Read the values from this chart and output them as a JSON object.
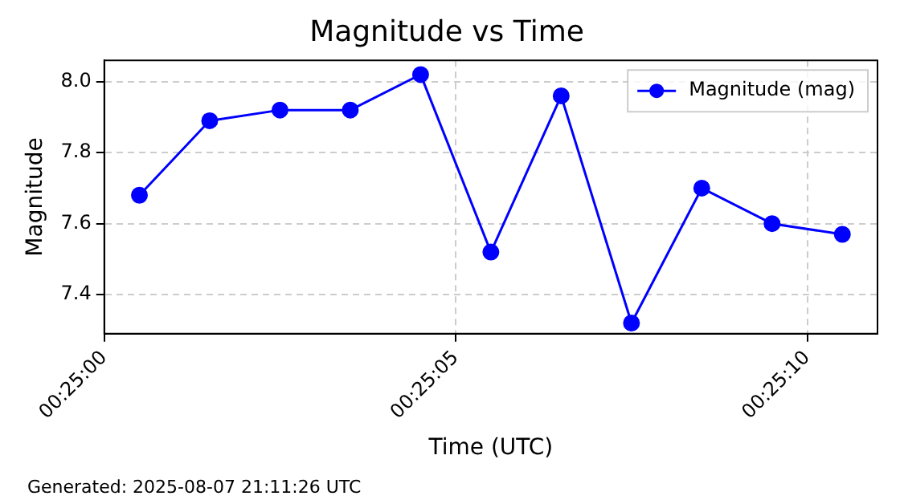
{
  "chart_data": {
    "type": "line",
    "title": "Magnitude vs Time",
    "xlabel": "Time (UTC)",
    "ylabel": "Magnitude",
    "x": [
      0.4168056,
      0.4170833,
      0.4173611,
      0.4176389,
      0.4179167,
      0.4181944,
      0.4184722,
      0.41875,
      0.4190278,
      0.4193056,
      0.4195833
    ],
    "series": [
      {
        "name": "Magnitude (mag)",
        "color": "#0000ff",
        "values": [
          7.68,
          7.89,
          7.92,
          7.92,
          8.02,
          7.52,
          7.96,
          7.32,
          7.7,
          7.6,
          7.57
        ]
      }
    ],
    "xlim": [
      0.4166667,
      0.4197222
    ],
    "xticks": [
      {
        "value": 0.4166667,
        "label": "00:25:00"
      },
      {
        "value": 0.4180556,
        "label": "00:25:05"
      },
      {
        "value": 0.4194444,
        "label": "00:25:10"
      }
    ],
    "ylim": [
      7.29,
      8.06
    ],
    "yticks": [
      7.4,
      7.6,
      7.8,
      {
        "value": 8,
        "label": "8.0"
      }
    ],
    "grid": true,
    "legend": "top right",
    "marker": "circle",
    "line_style": "solid",
    "annotations": [
      "Generated: 2025-08-07 21:11:26 UTC"
    ]
  }
}
